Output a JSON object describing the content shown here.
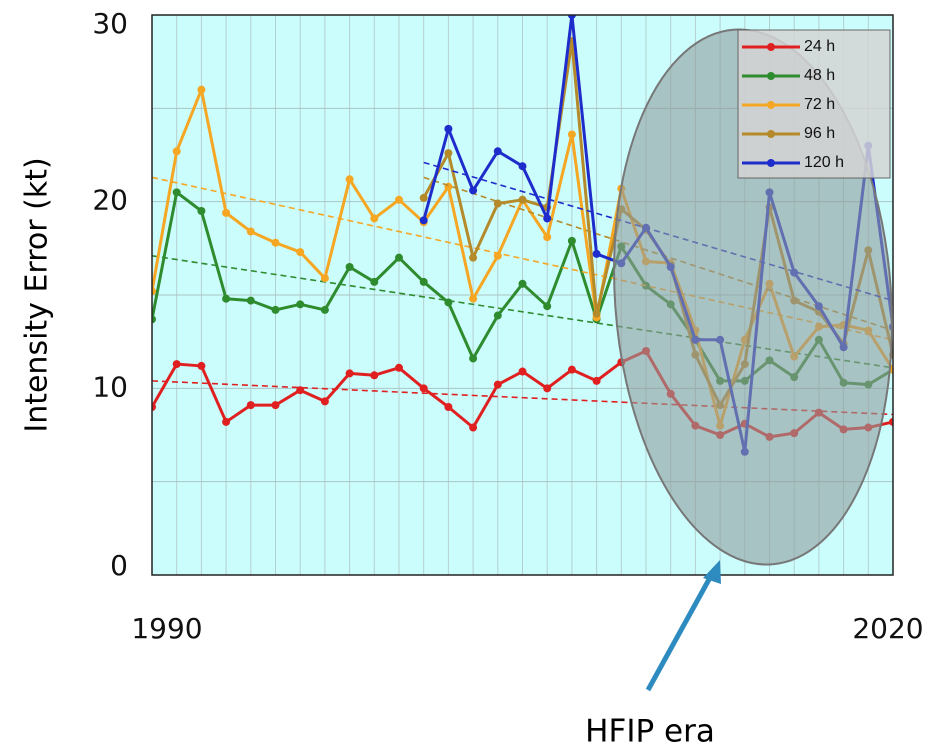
{
  "chart_data": {
    "type": "line",
    "y_label": "Intensity Error (kt)",
    "annotation": "HFIP era",
    "x": [
      1990,
      1991,
      1992,
      1993,
      1994,
      1995,
      1996,
      1997,
      1998,
      1999,
      2000,
      2001,
      2002,
      2003,
      2004,
      2005,
      2006,
      2007,
      2008,
      2009,
      2010,
      2011,
      2012,
      2013,
      2014,
      2015,
      2016,
      2017,
      2018,
      2019,
      2020
    ],
    "xlim": [
      1990,
      2020
    ],
    "xticks": [
      1990,
      2020
    ],
    "ylim": [
      0,
      30
    ],
    "yticks": [
      0,
      10,
      20,
      30
    ],
    "grid": true,
    "legend": "upper right",
    "series": [
      {
        "name": "24 h",
        "color": "#e02020",
        "trend": [
          10.4,
          8.6
        ],
        "values": [
          9.0,
          11.3,
          11.2,
          8.2,
          9.1,
          9.1,
          9.9,
          9.3,
          10.8,
          10.7,
          11.1,
          10.0,
          9.0,
          7.9,
          10.2,
          10.9,
          10.0,
          11.0,
          10.4,
          11.4,
          12.0,
          9.7,
          8.0,
          7.5,
          8.1,
          7.4,
          7.6,
          8.7,
          7.8,
          7.9,
          8.2
        ]
      },
      {
        "name": "48 h",
        "color": "#2e8b2e",
        "trend": [
          17.1,
          11.1
        ],
        "values": [
          13.7,
          20.5,
          19.5,
          14.8,
          14.7,
          14.2,
          14.5,
          14.2,
          16.5,
          15.7,
          17.0,
          15.7,
          14.6,
          11.6,
          13.9,
          15.6,
          14.4,
          17.9,
          13.7,
          17.6,
          15.5,
          14.5,
          12.6,
          10.4,
          10.4,
          11.5,
          10.6,
          12.6,
          10.3,
          10.2,
          11.0
        ]
      },
      {
        "name": "72 h",
        "color": "#f5a623",
        "trend": [
          21.3,
          12.6
        ],
        "values": [
          15.2,
          22.7,
          26.0,
          19.4,
          18.4,
          17.8,
          17.3,
          15.9,
          21.2,
          19.1,
          20.1,
          18.9,
          20.8,
          14.8,
          17.1,
          20.1,
          18.1,
          23.6,
          13.8,
          20.7,
          16.8,
          16.7,
          13.1,
          8.0,
          12.6,
          15.6,
          11.7,
          13.3,
          13.4,
          13.1,
          11.0
        ]
      },
      {
        "name": "96 h",
        "color": "#b58a2a",
        "trend": [
          21.3,
          13.1
        ],
        "values": [
          null,
          null,
          null,
          null,
          null,
          null,
          null,
          null,
          null,
          null,
          null,
          20.2,
          22.6,
          17.0,
          19.9,
          20.1,
          19.7,
          28.6,
          14.0,
          19.6,
          18.5,
          16.6,
          11.8,
          9.1,
          11.3,
          19.7,
          14.7,
          14.1,
          12.4,
          17.4,
          11.8
        ]
      },
      {
        "name": "120 h",
        "color": "#1f2ccc",
        "trend": [
          22.1,
          14.7
        ],
        "values": [
          null,
          null,
          null,
          null,
          null,
          null,
          null,
          null,
          null,
          null,
          null,
          19.0,
          23.9,
          20.6,
          22.7,
          21.9,
          19.1,
          30.0,
          17.2,
          16.7,
          18.6,
          16.5,
          12.6,
          12.6,
          6.6,
          20.5,
          16.2,
          14.4,
          12.2,
          23.0,
          13.3
        ]
      }
    ]
  }
}
